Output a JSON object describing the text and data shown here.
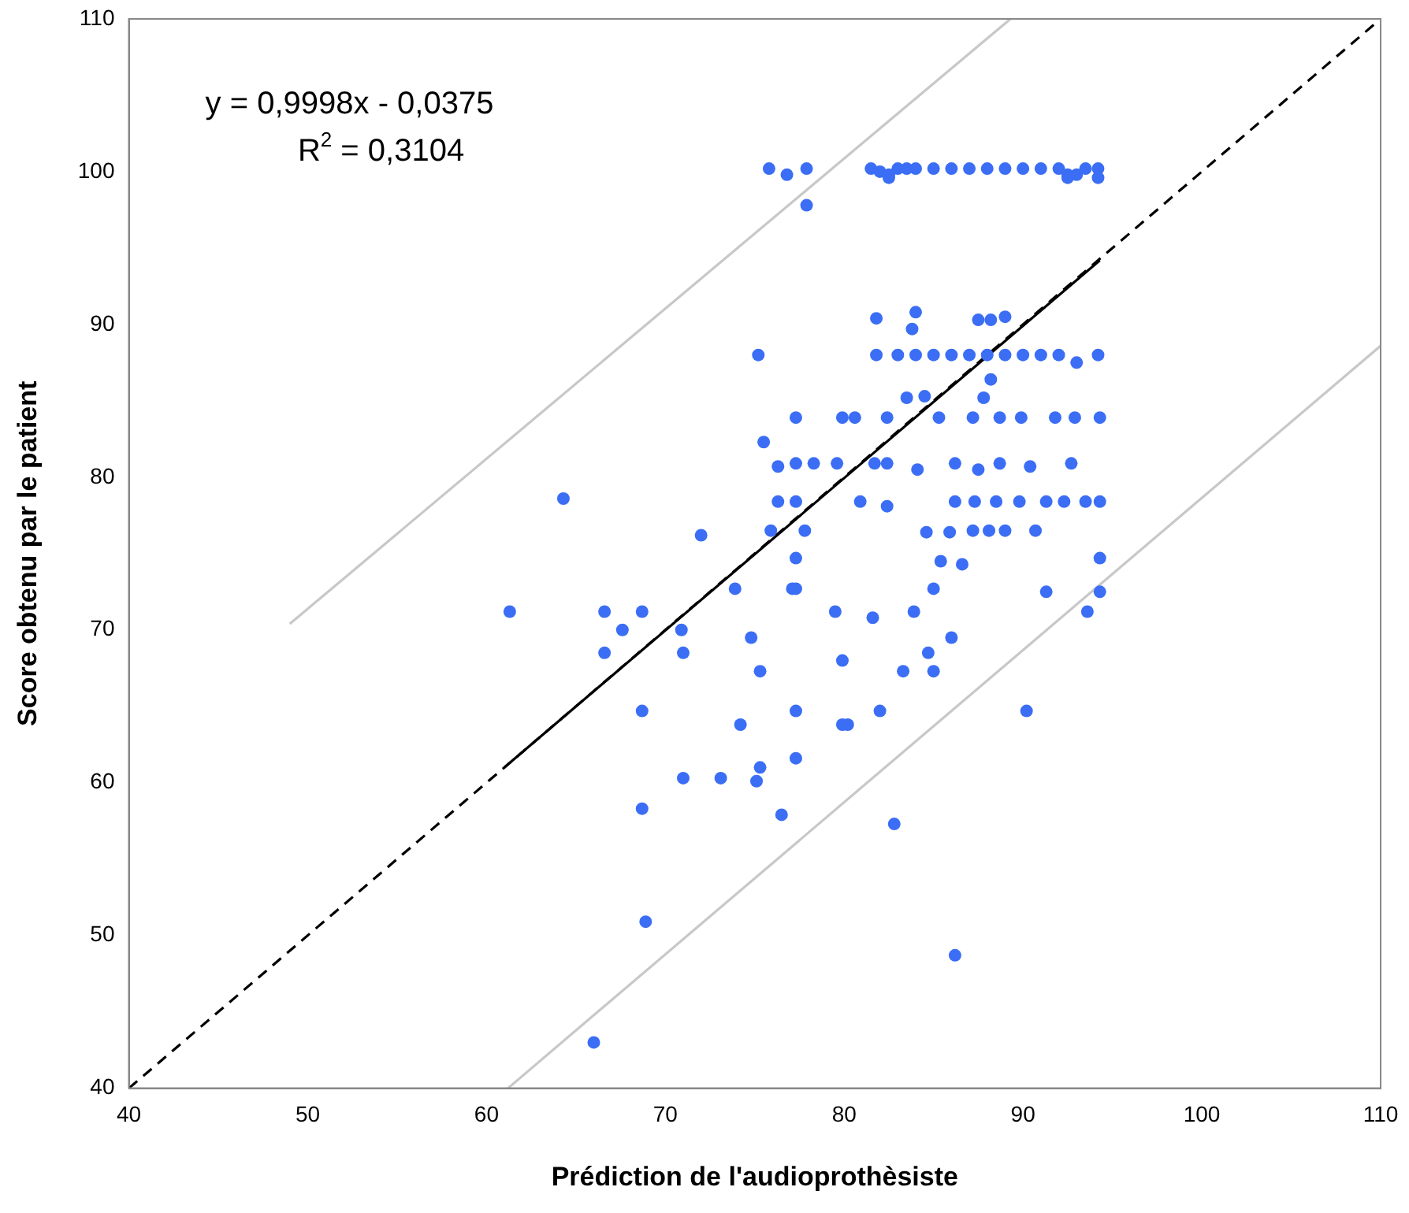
{
  "chart_data": {
    "type": "scatter",
    "xlabel": "Prédiction de l'audioprothèsiste",
    "ylabel": "Score obtenu par le patient",
    "xlim": [
      40,
      110
    ],
    "ylim": [
      40,
      110
    ],
    "xticks": [
      40,
      50,
      60,
      70,
      80,
      90,
      100,
      110
    ],
    "yticks": [
      40,
      50,
      60,
      70,
      80,
      90,
      100,
      110
    ],
    "grid": false,
    "legend": false,
    "marker": "circle",
    "annotations": [
      "y = 0,9998x - 0,0375",
      "R$^{2}$ = 0,3104"
    ],
    "series": [
      {
        "color": "#3b6ef5",
        "x": [
          75.8,
          76.8,
          77.9,
          77.9,
          81.5,
          82,
          82.5,
          83,
          83.5,
          84,
          85,
          86,
          87,
          88,
          89,
          90,
          91,
          92,
          92.5,
          93,
          93.5,
          94.2,
          82.5,
          92.5,
          94.2,
          81.8,
          84,
          83.8,
          87.5,
          88.2,
          89,
          75.2,
          81.8,
          83,
          84,
          85,
          86,
          87,
          88,
          89,
          90,
          91,
          92,
          93,
          94.2,
          84.5,
          88.2,
          83.5,
          87.8,
          77.3,
          79.9,
          80.6,
          82.4,
          85.3,
          87.2,
          88.7,
          89.9,
          91.8,
          92.9,
          94.3,
          75.5,
          76.3,
          77.3,
          78.3,
          79.6,
          81.7,
          82.4,
          84.1,
          86.2,
          87.5,
          88.7,
          90.4,
          92.7,
          64.3,
          76.3,
          77.3,
          80.9,
          82.4,
          86.2,
          87.3,
          88.5,
          89.8,
          91.3,
          92.3,
          93.5,
          94.3,
          72,
          75.9,
          77.8,
          84.6,
          85.9,
          87.2,
          88.1,
          89,
          90.7,
          77.3,
          85.4,
          86.6,
          94.3,
          73.9,
          77.1,
          77.3,
          85,
          91.3,
          94.3,
          61.3,
          66.6,
          68.7,
          67.6,
          70.9,
          79.5,
          81.6,
          83.9,
          93.6,
          66.6,
          71,
          74.8,
          79.9,
          84.7,
          86,
          75.3,
          83.3,
          85,
          68.7,
          74.2,
          77.3,
          79.9,
          80.2,
          82,
          90.2,
          71,
          73.1,
          75.3,
          75.1,
          77.3,
          68.7,
          76.5,
          82.8,
          68.9,
          86.2,
          66
        ],
        "values": [
          100.2,
          99.8,
          100.2,
          97.8,
          100.2,
          100,
          99.8,
          100.2,
          100.2,
          100.2,
          100.2,
          100.2,
          100.2,
          100.2,
          100.2,
          100.2,
          100.2,
          100.2,
          99.6,
          99.8,
          100.2,
          99.6,
          99.6,
          99.8,
          100.2,
          90.4,
          90.8,
          89.7,
          90.3,
          90.3,
          90.5,
          88,
          88,
          88,
          88,
          88,
          88,
          88,
          88,
          88,
          88,
          88,
          88,
          87.5,
          88,
          85.3,
          86.4,
          85.2,
          85.2,
          83.9,
          83.9,
          83.9,
          83.9,
          83.9,
          83.9,
          83.9,
          83.9,
          83.9,
          83.9,
          83.9,
          82.3,
          80.7,
          80.9,
          80.9,
          80.9,
          80.9,
          80.9,
          80.5,
          80.9,
          80.5,
          80.9,
          80.7,
          80.9,
          78.6,
          78.4,
          78.4,
          78.4,
          78.1,
          78.4,
          78.4,
          78.4,
          78.4,
          78.4,
          78.4,
          78.4,
          78.4,
          76.2,
          76.5,
          76.5,
          76.4,
          76.4,
          76.5,
          76.5,
          76.5,
          76.5,
          74.7,
          74.5,
          74.3,
          74.7,
          72.7,
          72.7,
          72.7,
          72.7,
          72.5,
          72.5,
          71.2,
          71.2,
          71.2,
          70,
          70,
          71.2,
          70.8,
          71.2,
          71.2,
          68.5,
          68.5,
          69.5,
          68,
          68.5,
          69.5,
          67.3,
          67.3,
          67.3,
          64.7,
          63.8,
          64.7,
          63.8,
          63.8,
          64.7,
          64.7,
          60.3,
          60.3,
          61,
          60.1,
          61.6,
          58.3,
          57.9,
          57.3,
          50.9,
          48.7,
          43
        ]
      },
      {
        "type": "line",
        "color": "#000000",
        "marker": "none",
        "line_style": "solid",
        "x": [
          61,
          94.3
        ],
        "values": [
          61,
          94.2
        ]
      },
      {
        "type": "line",
        "color": "#000000",
        "marker": "none",
        "line_style": "dashed",
        "x": [
          40,
          110
        ],
        "values": [
          40,
          110
        ]
      },
      {
        "type": "line",
        "color": "#c8c8c8",
        "marker": "none",
        "line_style": "solid",
        "x": [
          49,
          89.3
        ],
        "values": [
          70.4,
          110
        ]
      },
      {
        "type": "line",
        "color": "#c8c8c8",
        "marker": "none",
        "line_style": "solid",
        "x": [
          61.2,
          110
        ],
        "values": [
          40,
          88.6
        ]
      }
    ]
  }
}
